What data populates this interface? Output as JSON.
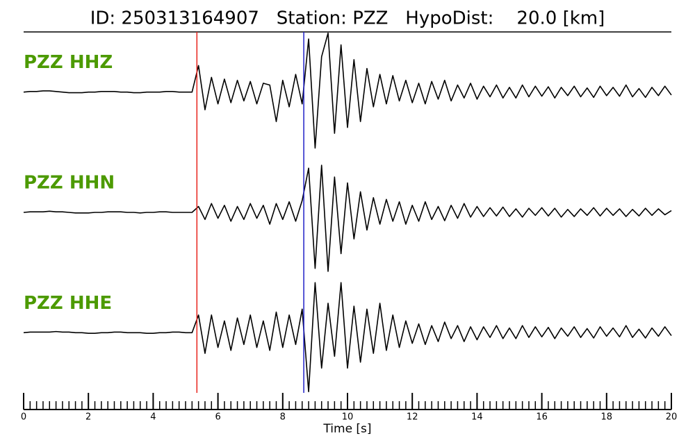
{
  "chart_data": {
    "type": "seismogram",
    "title": "ID: 250313164907   Station: PZZ   HypoDist:    20.0 [km]",
    "xlabel": "Time [s]",
    "xlim": [
      0,
      20
    ],
    "xticks": [
      0,
      2,
      4,
      6,
      8,
      10,
      12,
      14,
      16,
      18,
      20
    ],
    "xminor": 0.2,
    "ylim": [
      -1,
      1
    ],
    "p_pick": {
      "x": 5.35,
      "color": "#e8221b"
    },
    "s_pick": {
      "x": 8.65,
      "color": "#1f1fc8"
    },
    "label_color": "#4c9a00",
    "x": [
      0,
      0.2,
      0.4,
      0.6,
      0.8,
      1,
      1.2,
      1.4,
      1.6,
      1.8,
      2,
      2.2,
      2.4,
      2.6,
      2.8,
      3,
      3.2,
      3.4,
      3.6,
      3.8,
      4,
      4.2,
      4.4,
      4.6,
      4.8,
      5,
      5.2,
      5.4,
      5.6,
      5.8,
      6,
      6.2,
      6.4,
      6.6,
      6.8,
      7,
      7.2,
      7.4,
      7.6,
      7.8,
      8,
      8.2,
      8.4,
      8.6,
      8.8,
      9,
      9.2,
      9.4,
      9.6,
      9.8,
      10,
      10.2,
      10.4,
      10.6,
      10.8,
      11,
      11.2,
      11.4,
      11.6,
      11.8,
      12,
      12.2,
      12.4,
      12.6,
      12.8,
      13,
      13.2,
      13.4,
      13.6,
      13.8,
      14,
      14.2,
      14.4,
      14.6,
      14.8,
      15,
      15.2,
      15.4,
      15.6,
      15.8,
      16,
      16.2,
      16.4,
      16.6,
      16.8,
      17,
      17.2,
      17.4,
      17.6,
      17.8,
      18,
      18.2,
      18.4,
      18.6,
      18.8,
      19,
      19.2,
      19.4,
      19.6,
      19.8,
      20
    ],
    "series": [
      {
        "name": "PZZ HHZ",
        "color": "#000000",
        "values": [
          0,
          0.01,
          0.01,
          0.02,
          0.02,
          0.01,
          0,
          -0.01,
          -0.01,
          -0.01,
          0,
          0,
          0.01,
          0.01,
          0.01,
          0,
          0,
          -0.01,
          -0.01,
          0,
          0,
          0,
          0.01,
          0.01,
          0,
          0,
          0,
          0.45,
          -0.3,
          0.25,
          -0.2,
          0.22,
          -0.18,
          0.2,
          -0.15,
          0.18,
          -0.2,
          0.15,
          0.12,
          -0.5,
          0.2,
          -0.25,
          0.3,
          -0.2,
          0.9,
          -0.95,
          0.6,
          1.0,
          -0.7,
          0.8,
          -0.6,
          0.55,
          -0.5,
          0.4,
          -0.25,
          0.3,
          -0.2,
          0.28,
          -0.15,
          0.2,
          -0.18,
          0.15,
          -0.2,
          0.18,
          -0.12,
          0.2,
          -0.15,
          0.12,
          -0.1,
          0.15,
          -0.12,
          0.1,
          -0.08,
          0.12,
          -0.1,
          0.08,
          -0.1,
          0.12,
          -0.08,
          0.1,
          -0.07,
          0.09,
          -0.1,
          0.08,
          -0.06,
          0.1,
          -0.08,
          0.07,
          -0.09,
          0.1,
          -0.06,
          0.08,
          -0.07,
          0.12,
          -0.08,
          0.06,
          -0.09,
          0.08,
          -0.06,
          0.1,
          -0.05
        ]
      },
      {
        "name": "PZZ HHN",
        "color": "#000000",
        "values": [
          0,
          0.01,
          0.01,
          0.01,
          0.02,
          0.01,
          0.01,
          0,
          -0.01,
          -0.01,
          -0.01,
          0,
          0,
          0.01,
          0.01,
          0.01,
          0,
          0,
          -0.01,
          0,
          0,
          0.01,
          0.01,
          0,
          0,
          0,
          0,
          0.1,
          -0.12,
          0.15,
          -0.1,
          0.12,
          -0.15,
          0.1,
          -0.12,
          0.15,
          -0.1,
          0.12,
          -0.2,
          0.15,
          -0.12,
          0.18,
          -0.15,
          0.2,
          0.75,
          -0.95,
          0.8,
          -1.0,
          0.6,
          -0.7,
          0.5,
          -0.45,
          0.35,
          -0.3,
          0.25,
          -0.2,
          0.22,
          -0.15,
          0.18,
          -0.2,
          0.12,
          -0.15,
          0.18,
          -0.12,
          0.1,
          -0.14,
          0.12,
          -0.1,
          0.15,
          -0.08,
          0.1,
          -0.07,
          0.08,
          -0.06,
          0.09,
          -0.07,
          0.06,
          -0.08,
          0.07,
          -0.05,
          0.08,
          -0.06,
          0.07,
          -0.08,
          0.05,
          -0.07,
          0.06,
          -0.05,
          0.08,
          -0.06,
          0.07,
          -0.05,
          0.06,
          -0.07,
          0.05,
          -0.06,
          0.07,
          -0.05,
          0.06,
          -0.04,
          0.03
        ]
      },
      {
        "name": "PZZ HHE",
        "color": "#000000",
        "values": [
          0,
          0.01,
          0.01,
          0.01,
          0.01,
          0.02,
          0.01,
          0.01,
          0,
          0,
          -0.01,
          -0.01,
          0,
          0,
          0.01,
          0.01,
          0,
          0,
          0,
          -0.01,
          -0.01,
          0,
          0,
          0.01,
          0.01,
          0,
          0,
          0.3,
          -0.35,
          0.3,
          -0.25,
          0.2,
          -0.3,
          0.25,
          -0.2,
          0.3,
          -0.25,
          0.2,
          -0.3,
          0.35,
          -0.25,
          0.3,
          -0.2,
          0.4,
          -1.0,
          0.85,
          -0.6,
          0.5,
          -0.4,
          0.85,
          -0.6,
          0.45,
          -0.5,
          0.4,
          -0.35,
          0.5,
          -0.3,
          0.3,
          -0.25,
          0.2,
          -0.18,
          0.15,
          -0.2,
          0.12,
          -0.15,
          0.18,
          -0.1,
          0.12,
          -0.15,
          0.1,
          -0.12,
          0.1,
          -0.08,
          0.12,
          -0.1,
          0.08,
          -0.1,
          0.12,
          -0.08,
          0.1,
          -0.07,
          0.09,
          -0.1,
          0.08,
          -0.06,
          0.1,
          -0.08,
          0.07,
          -0.09,
          0.1,
          -0.06,
          0.08,
          -0.07,
          0.12,
          -0.08,
          0.06,
          -0.09,
          0.08,
          -0.06,
          0.1,
          -0.05
        ]
      }
    ]
  }
}
